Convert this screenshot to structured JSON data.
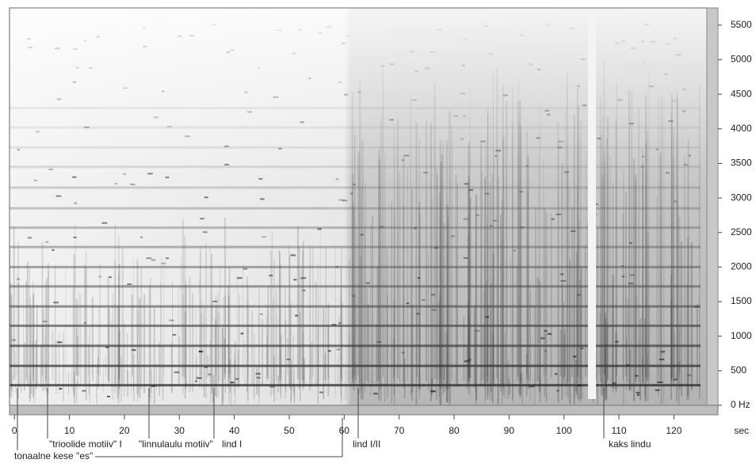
{
  "chart_data": {
    "type": "spectrogram",
    "x_label": "sec",
    "xlim": [
      -0.9,
      126
    ],
    "xticks": [
      0,
      10,
      20,
      30,
      40,
      50,
      60,
      70,
      80,
      90,
      100,
      110,
      120
    ],
    "ylim": [
      0,
      5750
    ],
    "yticks": [
      {
        "value": 0,
        "label": "0 Hz"
      },
      500,
      1000,
      1500,
      2000,
      2500,
      3000,
      3500,
      4000,
      4500,
      5000,
      5500
    ],
    "annotations": [
      "tonaalne kese \"es\"",
      "\"trioolide motiiv\" I",
      "\"linnulaulu motiiv\"",
      "lind I",
      "lind I/II",
      "kaks lindu"
    ]
  }
}
